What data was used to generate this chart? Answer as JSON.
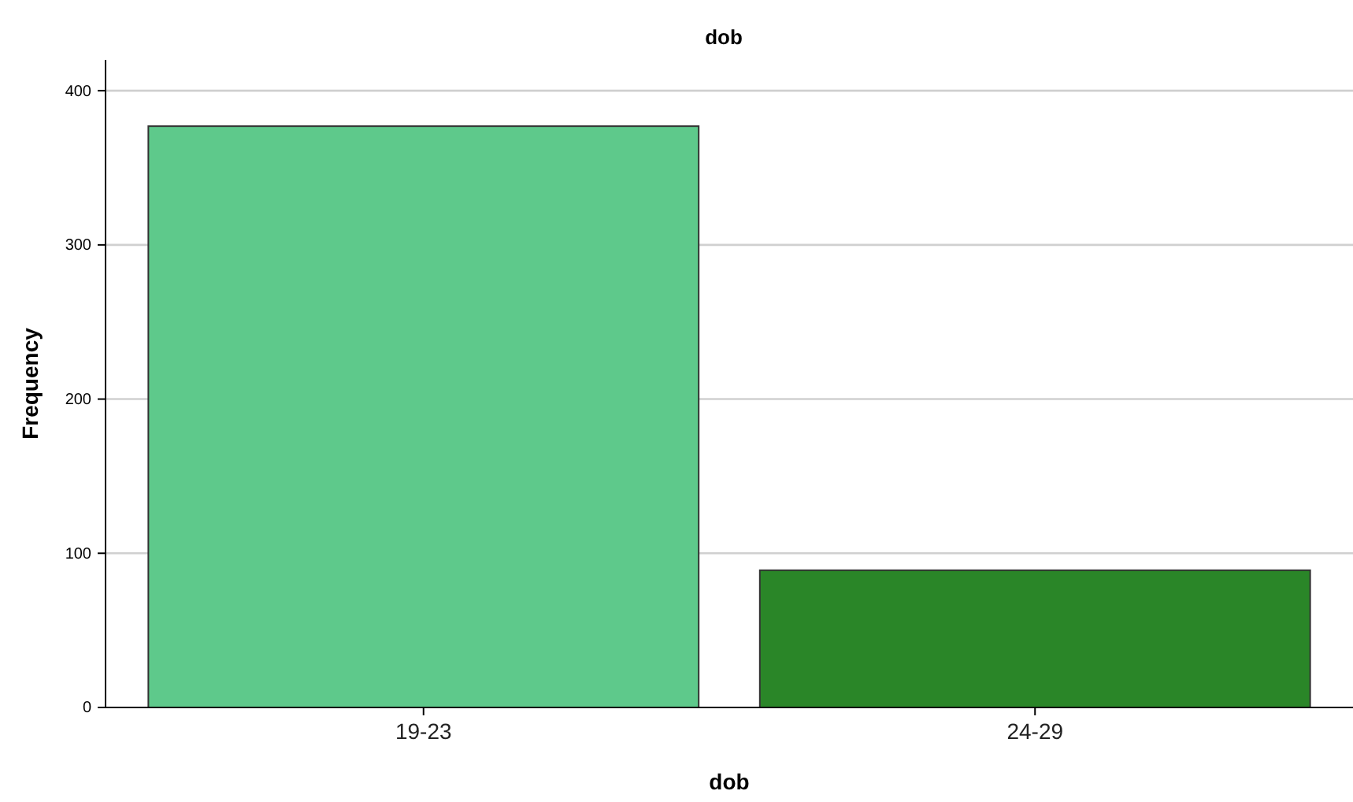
{
  "chart_data": {
    "type": "bar",
    "title": "dob",
    "xlabel": "dob",
    "ylabel": "Frequency",
    "categories": [
      "19-23",
      "24-29"
    ],
    "values": [
      377,
      89
    ],
    "colors": [
      "#5ec98b",
      "#2a8628"
    ],
    "ylim": [
      0,
      420
    ],
    "yticks": [
      0,
      100,
      200,
      300,
      400
    ],
    "grid": "y"
  }
}
